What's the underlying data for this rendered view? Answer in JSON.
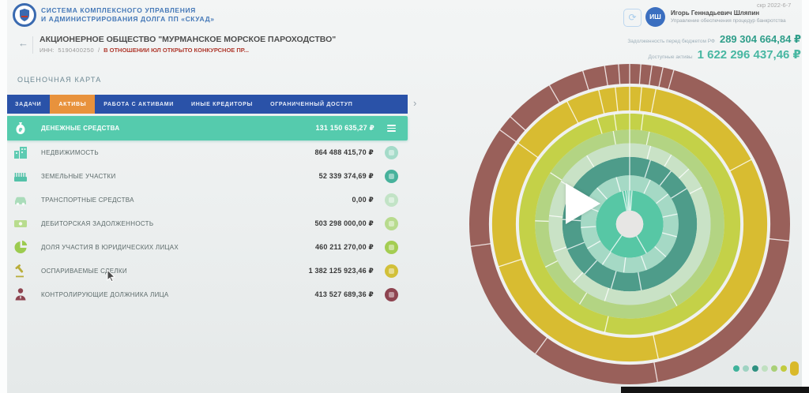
{
  "app": {
    "title_line1": "СИСТЕМА КОМПЛЕКСНОГО УПРАВЛЕНИЯ",
    "title_line2": "И АДМИНИСТРИРОВАНИЯ ДОЛГА ПП «СКУАД»"
  },
  "watermark": "скр 2022-6-7",
  "user": {
    "initials": "ИШ",
    "name": "Игорь Геннадьевич Шляпин",
    "role": "Управление обеспечения процедур банкротства"
  },
  "company": {
    "back_arrow": "←",
    "name": "АКЦИОНЕРНОЕ ОБЩЕСТВО \"МУРМАНСКОЕ МОРСКОЕ ПАРОХОДСТВО\"",
    "inn_label": "ИНН:",
    "inn": "5190400250",
    "separator": "/",
    "status": "В ОТНОШЕНИИ ЮЛ ОТКРЫТО КОНКУРСНОЕ ПР..."
  },
  "totals": {
    "debt_label": "Задолженность перед бюджетом РФ",
    "debt_value": "289 304 664,84 ₽",
    "assets_label": "Доступные активы",
    "assets_value": "1 622 296 437,46 ₽"
  },
  "section_title": "ОЦЕНОЧНАЯ КАРТА",
  "tabs": {
    "items": [
      {
        "label": "ЗАДАЧИ"
      },
      {
        "label": "АКТИВЫ",
        "active": true
      },
      {
        "label": "РАБОТА С АКТИВАМИ"
      },
      {
        "label": "ИНЫЕ КРЕДИТОРЫ"
      },
      {
        "label": "ОГРАНИЧЕННЫЙ ДОСТУП"
      }
    ],
    "chevron": "›"
  },
  "colors": {
    "tabbar_blue": "#2a52a8",
    "active_tab_orange": "#e8923c",
    "selected_row_teal": "#55cbad",
    "status_red": "#b03a2e",
    "value_teal_dark": "#2f9e8a",
    "value_teal_light": "#48b7a2"
  },
  "assets": {
    "rows": [
      {
        "label": "ДЕНЕЖНЫЕ СРЕДСТВА",
        "value": "131 150 635,27 ₽",
        "icon": "money-bag",
        "icon_color": "#ffffff",
        "selected": true
      },
      {
        "label": "НЕДВИЖИМОСТЬ",
        "value": "864 488 415,70 ₽",
        "icon": "building",
        "icon_color": "#5ecbb2",
        "status_color": "#a5dbc9"
      },
      {
        "label": "ЗЕМЕЛЬНЫЕ УЧАСТКИ",
        "value": "52 339 374,69 ₽",
        "icon": "land",
        "icon_color": "#54c2a9",
        "status_color": "#47b29c"
      },
      {
        "label": "ТРАНСПОРТНЫЕ СРЕДСТВА",
        "value": "0,00 ₽",
        "icon": "vehicle",
        "icon_color": "#aadcba",
        "status_color": "#c2e3c6"
      },
      {
        "label": "ДЕБИТОРСКАЯ ЗАДОЛЖЕННОСТЬ",
        "value": "503 298 000,00 ₽",
        "icon": "banknote",
        "icon_color": "#b8dc8e",
        "status_color": "#b8db8e"
      },
      {
        "label": "ДОЛЯ УЧАСТИЯ В ЮРИДИЧЕСКИХ ЛИЦАХ",
        "value": "460 211 270,00 ₽",
        "icon": "pie-chart",
        "icon_color": "#9ccb4f",
        "status_color": "#a4cd52"
      },
      {
        "label": "ОСПАРИВАЕМЫЕ СДЕЛКИ",
        "value": "1 382 125 923,46 ₽",
        "icon": "gavel",
        "icon_color": "#b9ad3a",
        "status_color": "#d2c039"
      },
      {
        "label": "КОНТРОЛИРУЮЩИЕ ДОЛЖНИКА ЛИЦА",
        "value": "413 527 689,36 ₽",
        "icon": "person",
        "icon_color": "#8e4450",
        "status_color": "#8e4450"
      }
    ]
  },
  "chart_data": {
    "type": "sunburst",
    "title": "",
    "note": "asset composition rings, no labels visible in pixels",
    "hub_color": "#e7e6e4",
    "hub_radius": 0.085,
    "white_gaps": [
      0.7,
      0.8675
    ],
    "rings": [
      {
        "name": "inner-teal",
        "color": "#57c7a5",
        "r0": 0.085,
        "r1": 0.21,
        "dividers": [
          -12,
          -7,
          -3,
          0,
          4,
          150,
          215
        ]
      },
      {
        "name": "light-mint",
        "color": "#a5d9c5",
        "r0": 0.21,
        "r1": 0.305,
        "dividers": [
          0,
          25,
          52,
          78,
          105,
          132,
          160,
          187,
          214,
          240,
          266,
          292,
          318,
          344
        ]
      },
      {
        "name": "dark-teal",
        "color": "#4e9c8a",
        "r0": 0.305,
        "r1": 0.42,
        "dividers": [
          0,
          18,
          38,
          58,
          170,
          196,
          222,
          248,
          274
        ]
      },
      {
        "name": "pale-mint",
        "color": "#c9e2c6",
        "r0": 0.42,
        "r1": 0.505,
        "dividers": [
          0,
          15,
          31,
          47,
          63,
          198,
          224,
          250,
          276,
          302,
          328
        ]
      },
      {
        "name": "light-green",
        "color": "#b3d483",
        "r0": 0.505,
        "r1": 0.59,
        "dividers": [
          -10,
          0,
          12,
          150,
          212,
          243,
          272,
          303
        ]
      },
      {
        "name": "chartreuse",
        "color": "#c4d148",
        "r0": 0.59,
        "r1": 0.695,
        "dividers": [
          -17,
          -8,
          0,
          7,
          193
        ]
      },
      {
        "name": "gold",
        "color": "#d8bc31",
        "r0": 0.705,
        "r1": 0.86,
        "dividers": [
          -27,
          -13,
          -6,
          0,
          5,
          11,
          62,
          168,
          252,
          306
        ]
      },
      {
        "name": "maroon",
        "color": "#99605a",
        "r0": 0.875,
        "r1": 1.0,
        "dividers": [
          -54,
          -30,
          -17,
          -9,
          -4,
          0,
          4,
          8,
          12,
          16,
          96,
          170,
          216,
          262,
          312
        ]
      }
    ]
  },
  "legend": {
    "dots": [
      {
        "color": "#3fb39b"
      },
      {
        "color": "#9fd3c2"
      },
      {
        "color": "#2f9181"
      },
      {
        "color": "#c0e0c0"
      },
      {
        "color": "#a9d077"
      },
      {
        "color": "#c2cb3d"
      },
      {
        "color": "#d9b92a",
        "shape": "pill"
      },
      {
        "color": "#8e4148"
      }
    ]
  }
}
